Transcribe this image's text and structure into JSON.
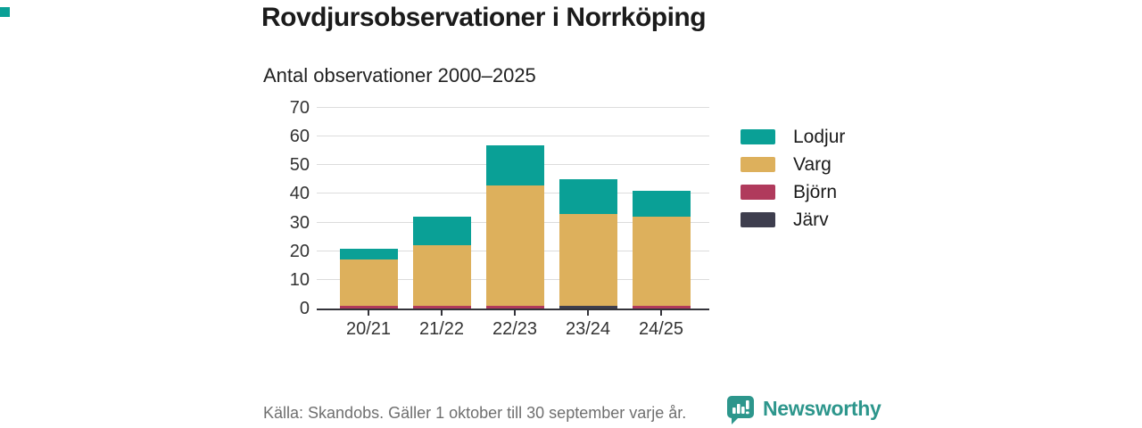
{
  "header": {
    "title": "Rovdjursobservationer i Norrköping",
    "subtitle": "Antal observationer 2000–2025"
  },
  "footer": {
    "source": "Källa: Skandobs. Gäller 1 oktober till 30 september varje år.",
    "brand": "Newsworthy",
    "brand_icon": "bar-chart-speech-bubble-icon"
  },
  "colors": {
    "lodjur_teal": "#0aa096",
    "varg_gold": "#ddb05c",
    "bjorn_maroon": "#b03a5c",
    "jarv_dark": "#3e3e4e",
    "axis": "#33333a",
    "grid": "#dcdcdc",
    "text": "#1b1b1b",
    "muted_text": "#6f6f6f",
    "brand_teal": "#2d968c",
    "corner_accent": "#0aa096"
  },
  "chart_data": {
    "type": "bar",
    "stacked": true,
    "title": "Rovdjursobservationer i Norrköping",
    "subtitle": "Antal observationer 2000–2025",
    "categories": [
      "20/21",
      "21/22",
      "22/23",
      "23/24",
      "24/25"
    ],
    "series": [
      {
        "name": "Lodjur",
        "color": "#0aa096",
        "values": [
          4,
          10,
          14,
          12,
          9
        ]
      },
      {
        "name": "Varg",
        "color": "#ddb05c",
        "values": [
          16,
          21,
          42,
          32,
          31
        ]
      },
      {
        "name": "Björn",
        "color": "#b03a5c",
        "values": [
          1,
          1,
          1,
          0,
          1
        ]
      },
      {
        "name": "Järv",
        "color": "#3e3e4e",
        "values": [
          0,
          0,
          0,
          1,
          0
        ]
      }
    ],
    "stack_order_bottom_to_top": [
      "Järv",
      "Björn",
      "Varg",
      "Lodjur"
    ],
    "totals": [
      21,
      32,
      57,
      45,
      41
    ],
    "yticks": [
      0,
      10,
      20,
      30,
      40,
      50,
      60,
      70
    ],
    "ylim": [
      0,
      70
    ],
    "grid": true,
    "legend_position": "right"
  }
}
